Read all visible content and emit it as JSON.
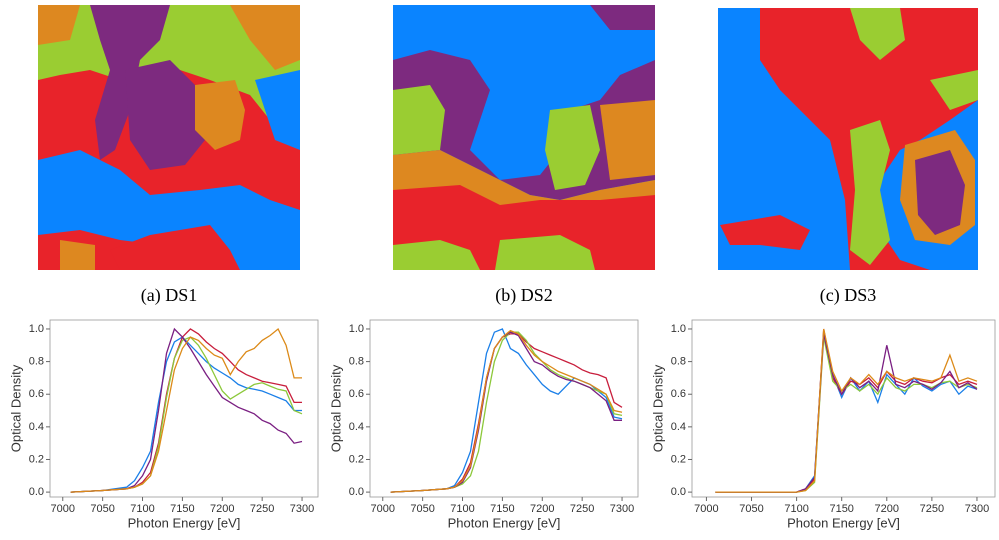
{
  "panels": [
    {
      "caption": "(a) DS1"
    },
    {
      "caption": "(b) DS2"
    },
    {
      "caption": "(c) DS3"
    }
  ],
  "chart_data": [
    {
      "type": "line",
      "xlabel": "Photon Energy [eV]",
      "ylabel": "Optical Density",
      "x": [
        7010,
        7050,
        7080,
        7090,
        7100,
        7110,
        7120,
        7130,
        7140,
        7150,
        7160,
        7170,
        7180,
        7190,
        7200,
        7210,
        7220,
        7230,
        7240,
        7250,
        7260,
        7270,
        7280,
        7290,
        7300
      ],
      "xlim": [
        6984,
        7320
      ],
      "ylim": [
        -0.03,
        1.055
      ],
      "xticks": [
        7000,
        7050,
        7100,
        7150,
        7200,
        7250,
        7300
      ],
      "yticks": [
        {
          "value": 0,
          "label": "0.0"
        },
        0.2,
        0.4,
        0.6,
        0.8,
        {
          "value": 1,
          "label": "1.0"
        }
      ],
      "series": [
        {
          "color": "#1a7fe8",
          "values": [
            0,
            0.01,
            0.03,
            0.07,
            0.15,
            0.25,
            0.55,
            0.8,
            0.92,
            0.95,
            0.9,
            0.85,
            0.8,
            0.76,
            0.73,
            0.7,
            0.66,
            0.64,
            0.63,
            0.62,
            0.6,
            0.58,
            0.56,
            0.5,
            0.5
          ]
        },
        {
          "color": "#c81e3c",
          "values": [
            0,
            0.01,
            0.02,
            0.03,
            0.06,
            0.12,
            0.3,
            0.6,
            0.82,
            0.95,
            1.0,
            0.97,
            0.92,
            0.88,
            0.85,
            0.8,
            0.75,
            0.72,
            0.7,
            0.68,
            0.67,
            0.66,
            0.65,
            0.55,
            0.55
          ]
        },
        {
          "color": "#8cc83a",
          "values": [
            0,
            0.01,
            0.02,
            0.03,
            0.05,
            0.1,
            0.28,
            0.58,
            0.82,
            0.93,
            0.95,
            0.9,
            0.82,
            0.72,
            0.62,
            0.57,
            0.6,
            0.63,
            0.66,
            0.67,
            0.65,
            0.63,
            0.62,
            0.5,
            0.48
          ]
        },
        {
          "color": "#7a1f82",
          "values": [
            0,
            0.01,
            0.02,
            0.04,
            0.1,
            0.2,
            0.5,
            0.85,
            1.0,
            0.95,
            0.88,
            0.8,
            0.72,
            0.65,
            0.58,
            0.55,
            0.52,
            0.5,
            0.48,
            0.44,
            0.42,
            0.38,
            0.36,
            0.3,
            0.31
          ]
        },
        {
          "color": "#dc8a18",
          "values": [
            0,
            0.01,
            0.02,
            0.03,
            0.05,
            0.1,
            0.25,
            0.5,
            0.75,
            0.88,
            0.95,
            0.93,
            0.88,
            0.84,
            0.82,
            0.72,
            0.8,
            0.86,
            0.88,
            0.93,
            0.96,
            1.0,
            0.9,
            0.7,
            0.7
          ]
        }
      ]
    },
    {
      "type": "line",
      "xlabel": "Photon Energy [eV]",
      "ylabel": "Optical Density",
      "x": [
        7010,
        7050,
        7080,
        7090,
        7100,
        7110,
        7120,
        7130,
        7140,
        7150,
        7160,
        7170,
        7180,
        7190,
        7200,
        7210,
        7220,
        7230,
        7240,
        7250,
        7260,
        7270,
        7280,
        7290,
        7300
      ],
      "xlim": [
        6984,
        7320
      ],
      "ylim": [
        -0.03,
        1.055
      ],
      "xticks": [
        7000,
        7050,
        7100,
        7150,
        7200,
        7250,
        7300
      ],
      "yticks": [
        {
          "value": 0,
          "label": "0.0"
        },
        0.2,
        0.4,
        0.6,
        0.8,
        {
          "value": 1,
          "label": "1.0"
        }
      ],
      "series": [
        {
          "color": "#1a7fe8",
          "values": [
            0,
            0.01,
            0.02,
            0.04,
            0.12,
            0.25,
            0.55,
            0.85,
            0.98,
            1.0,
            0.88,
            0.85,
            0.78,
            0.72,
            0.66,
            0.62,
            0.6,
            0.65,
            0.7,
            0.68,
            0.66,
            0.62,
            0.58,
            0.46,
            0.45
          ]
        },
        {
          "color": "#c81e3c",
          "values": [
            0,
            0.01,
            0.02,
            0.03,
            0.08,
            0.18,
            0.42,
            0.7,
            0.88,
            0.95,
            0.97,
            0.97,
            0.92,
            0.88,
            0.86,
            0.84,
            0.82,
            0.8,
            0.78,
            0.75,
            0.73,
            0.72,
            0.7,
            0.55,
            0.52
          ]
        },
        {
          "color": "#8cc83a",
          "values": [
            0,
            0.01,
            0.02,
            0.03,
            0.05,
            0.1,
            0.25,
            0.55,
            0.8,
            0.93,
            0.98,
            0.98,
            0.93,
            0.85,
            0.8,
            0.75,
            0.72,
            0.7,
            0.68,
            0.66,
            0.64,
            0.62,
            0.6,
            0.48,
            0.47
          ]
        },
        {
          "color": "#7a1f82",
          "values": [
            0,
            0.01,
            0.02,
            0.03,
            0.06,
            0.15,
            0.38,
            0.68,
            0.88,
            0.95,
            0.98,
            0.96,
            0.88,
            0.8,
            0.78,
            0.74,
            0.71,
            0.69,
            0.68,
            0.66,
            0.64,
            0.6,
            0.56,
            0.44,
            0.44
          ]
        },
        {
          "color": "#dc8a18",
          "values": [
            0,
            0.01,
            0.02,
            0.03,
            0.07,
            0.16,
            0.4,
            0.7,
            0.88,
            0.95,
            0.99,
            0.97,
            0.9,
            0.84,
            0.8,
            0.77,
            0.74,
            0.72,
            0.7,
            0.68,
            0.66,
            0.63,
            0.6,
            0.5,
            0.49
          ]
        }
      ]
    },
    {
      "type": "line",
      "xlabel": "Photon Energy [eV]",
      "ylabel": "Optical Density",
      "x": [
        7010,
        7050,
        7080,
        7090,
        7100,
        7110,
        7120,
        7130,
        7140,
        7150,
        7160,
        7170,
        7180,
        7190,
        7200,
        7210,
        7220,
        7230,
        7240,
        7250,
        7260,
        7270,
        7280,
        7290,
        7300
      ],
      "xlim": [
        6984,
        7320
      ],
      "ylim": [
        -0.03,
        1.055
      ],
      "xticks": [
        7000,
        7050,
        7100,
        7150,
        7200,
        7250,
        7300
      ],
      "yticks": [
        {
          "value": 0,
          "label": "0.0"
        },
        0.2,
        0.4,
        0.6,
        0.8,
        {
          "value": 1,
          "label": "1.0"
        }
      ],
      "series": [
        {
          "color": "#1a7fe8",
          "values": [
            0,
            0,
            0,
            0,
            0,
            0.02,
            0.1,
            0.98,
            0.72,
            0.58,
            0.7,
            0.62,
            0.68,
            0.55,
            0.72,
            0.66,
            0.6,
            0.7,
            0.65,
            0.62,
            0.66,
            0.68,
            0.6,
            0.65,
            0.63
          ]
        },
        {
          "color": "#c81e3c",
          "values": [
            0,
            0,
            0,
            0,
            0,
            0.02,
            0.08,
            1.0,
            0.7,
            0.6,
            0.68,
            0.66,
            0.7,
            0.64,
            0.74,
            0.68,
            0.66,
            0.7,
            0.68,
            0.67,
            0.7,
            0.72,
            0.66,
            0.68,
            0.66
          ]
        },
        {
          "color": "#8cc83a",
          "values": [
            0,
            0,
            0,
            0,
            0,
            0.01,
            0.06,
            0.95,
            0.68,
            0.62,
            0.66,
            0.62,
            0.66,
            0.6,
            0.7,
            0.64,
            0.62,
            0.66,
            0.66,
            0.64,
            0.67,
            0.68,
            0.64,
            0.66,
            0.64
          ]
        },
        {
          "color": "#7a1f82",
          "values": [
            0,
            0,
            0,
            0,
            0,
            0.02,
            0.09,
            0.97,
            0.72,
            0.6,
            0.7,
            0.64,
            0.68,
            0.62,
            0.9,
            0.66,
            0.64,
            0.68,
            0.66,
            0.63,
            0.67,
            0.74,
            0.64,
            0.67,
            0.63
          ]
        },
        {
          "color": "#dc8a18",
          "values": [
            0,
            0,
            0,
            0,
            0,
            0.01,
            0.07,
            1.0,
            0.74,
            0.62,
            0.7,
            0.66,
            0.72,
            0.66,
            0.74,
            0.7,
            0.68,
            0.7,
            0.69,
            0.68,
            0.7,
            0.84,
            0.68,
            0.7,
            0.68
          ]
        }
      ]
    }
  ]
}
